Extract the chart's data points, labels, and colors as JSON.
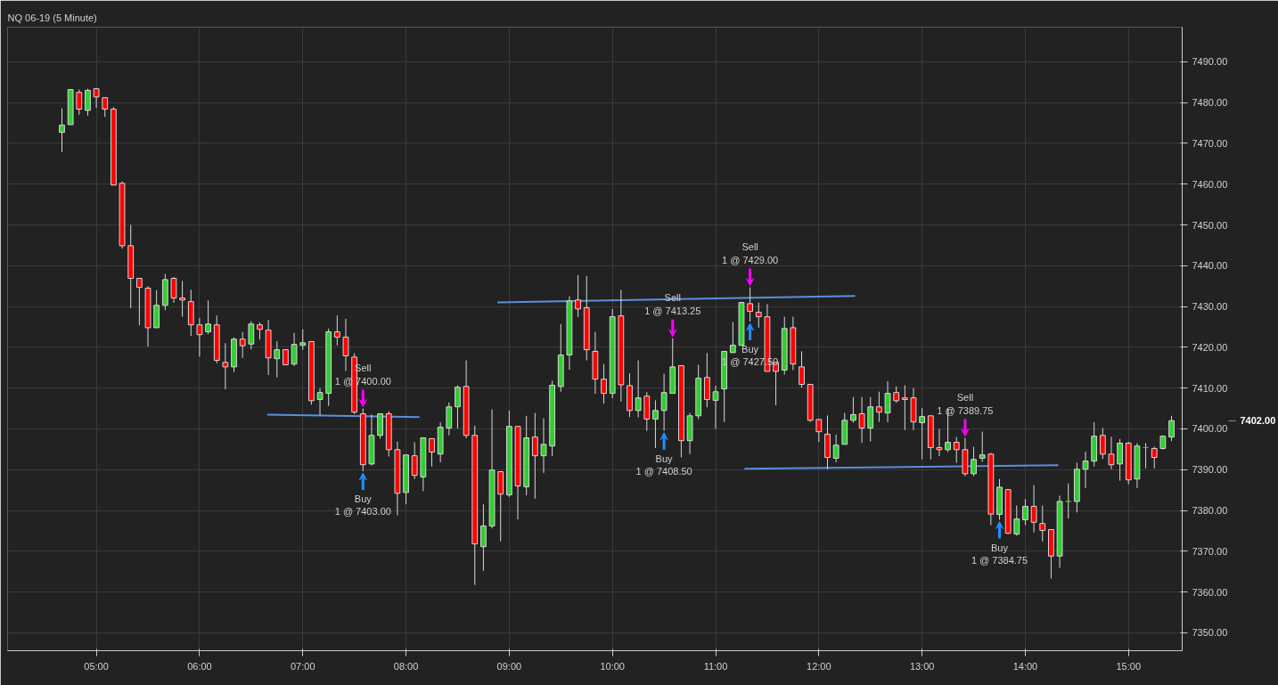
{
  "chart_data": {
    "type": "candlestick",
    "title": "NQ 06-19 (5 Minute)",
    "x": [
      4.6667,
      4.75,
      4.8333,
      4.9167,
      5,
      5.0833,
      5.1667,
      5.25,
      5.3333,
      5.4167,
      5.5,
      5.5833,
      5.6667,
      5.75,
      5.8333,
      5.9167,
      6,
      6.0833,
      6.1667,
      6.25,
      6.3333,
      6.4167,
      6.5,
      6.5833,
      6.6667,
      6.75,
      6.8333,
      6.9167,
      7,
      7.0833,
      7.1667,
      7.25,
      7.3333,
      7.4167,
      7.5,
      7.5833,
      7.6667,
      7.75,
      7.8333,
      7.9167,
      8,
      8.0833,
      8.1667,
      8.25,
      8.3333,
      8.4167,
      8.5,
      8.5833,
      8.6667,
      8.75,
      8.8333,
      8.9167,
      9,
      9.0833,
      9.1667,
      9.25,
      9.3333,
      9.4167,
      9.5,
      9.5833,
      9.6667,
      9.75,
      9.8333,
      9.9167,
      10,
      10.0833,
      10.1667,
      10.25,
      10.3333,
      10.4167,
      10.5,
      10.5833,
      10.6667,
      10.75,
      10.8333,
      10.9167,
      11,
      11.0833,
      11.1667,
      11.25,
      11.3333,
      11.4167,
      11.5,
      11.5833,
      11.6667,
      11.75,
      11.8333,
      11.9167,
      12,
      12.0833,
      12.1667,
      12.25,
      12.3333,
      12.4167,
      12.5,
      12.5833,
      12.6667,
      12.75,
      12.8333,
      12.9167,
      13,
      13.0833,
      13.1667,
      13.25,
      13.3333,
      13.4167,
      13.5,
      13.5833,
      13.6667,
      13.75,
      13.8333,
      13.9167,
      14,
      14.0833,
      14.1667,
      14.25,
      14.3333,
      14.4167,
      14.5,
      14.5833,
      14.6667,
      14.75,
      14.8333,
      14.9167,
      15,
      15.0833,
      15.1667,
      15.25,
      15.3333,
      15.4167
    ],
    "ohlc": [
      [
        7472.7,
        7478.6,
        7467.9,
        7474.5
      ],
      [
        7474.6,
        7483.2,
        7474.6,
        7483.2
      ],
      [
        7482.5,
        7483.2,
        7477.0,
        7478.4
      ],
      [
        7478.1,
        7483.4,
        7476.8,
        7483.0
      ],
      [
        7483.4,
        7483.6,
        7478.7,
        7481.4
      ],
      [
        7481.2,
        7481.2,
        7476.5,
        7478.4
      ],
      [
        7478.4,
        7478.9,
        7459.8,
        7459.8
      ],
      [
        7460.2,
        7460.7,
        7444.2,
        7444.9
      ],
      [
        7444.9,
        7450.0,
        7429.6,
        7436.9
      ],
      [
        7436.9,
        7436.9,
        7425.4,
        7434.7
      ],
      [
        7434.5,
        7435.0,
        7420.2,
        7424.8
      ],
      [
        7424.8,
        7434.0,
        7424.8,
        7430.3
      ],
      [
        7430.3,
        7438.0,
        7429.1,
        7436.6
      ],
      [
        7436.9,
        7437.2,
        7430.9,
        7432.1
      ],
      [
        7432.1,
        7436.3,
        7427.5,
        7431.6
      ],
      [
        7431.2,
        7434.1,
        7422.8,
        7425.5
      ],
      [
        7425.5,
        7427.2,
        7417.7,
        7423.1
      ],
      [
        7423.8,
        7431.5,
        7423.2,
        7425.7
      ],
      [
        7425.5,
        7427.8,
        7416.1,
        7416.8
      ],
      [
        7416.3,
        7421.0,
        7409.7,
        7415.2
      ],
      [
        7415.2,
        7422.4,
        7413.9,
        7422.0
      ],
      [
        7422.0,
        7423.8,
        7417.4,
        7420.4
      ],
      [
        7420.8,
        7426.4,
        7419.5,
        7425.7
      ],
      [
        7425.5,
        7426.1,
        7421.9,
        7424.4
      ],
      [
        7424.2,
        7426.7,
        7413.2,
        7417.4
      ],
      [
        7417.2,
        7421.5,
        7412.6,
        7419.4
      ],
      [
        7419.4,
        7419.4,
        7415.7,
        7415.7
      ],
      [
        7415.9,
        7423.5,
        7415.4,
        7420.7
      ],
      [
        7420.5,
        7424.4,
        7419.4,
        7421.1
      ],
      [
        7421.4,
        7421.4,
        7405.9,
        7406.9
      ],
      [
        7407.2,
        7410.0,
        7403.3,
        7408.9
      ],
      [
        7408.7,
        7424.6,
        7405.6,
        7423.8
      ],
      [
        7423.8,
        7427.8,
        7420.5,
        7422.5
      ],
      [
        7422.5,
        7427.0,
        7414.2,
        7417.9
      ],
      [
        7417.6,
        7418.5,
        7403.6,
        7404.1
      ],
      [
        7403.7,
        7405.0,
        7389.6,
        7391.2
      ],
      [
        7391.4,
        7403.5,
        7391.0,
        7398.4
      ],
      [
        7398.4,
        7403.7,
        7397.6,
        7403.7
      ],
      [
        7403.7,
        7404.3,
        7393.2,
        7394.9
      ],
      [
        7394.9,
        7396.9,
        7378.8,
        7384.2
      ],
      [
        7384.4,
        7393.6,
        7381.5,
        7393.6
      ],
      [
        7393.4,
        7396.7,
        7387.7,
        7388.6
      ],
      [
        7388.2,
        7397.8,
        7384.7,
        7397.8
      ],
      [
        7397.6,
        7397.6,
        7390.8,
        7394.3
      ],
      [
        7393.8,
        7401.6,
        7391.8,
        7400.4
      ],
      [
        7400.2,
        7406.5,
        7398.4,
        7405.4
      ],
      [
        7405.4,
        7410.7,
        7400.1,
        7410.2
      ],
      [
        7410.4,
        7416.8,
        7397.7,
        7398.4
      ],
      [
        7398.4,
        7400.8,
        7361.7,
        7371.8
      ],
      [
        7371.1,
        7381.5,
        7365.2,
        7376.2
      ],
      [
        7376.2,
        7404.8,
        7375.6,
        7389.9
      ],
      [
        7389.5,
        7389.5,
        7372.4,
        7384.0
      ],
      [
        7383.8,
        7404.5,
        7383.3,
        7400.6
      ],
      [
        7400.6,
        7400.6,
        7377.8,
        7386.0
      ],
      [
        7385.8,
        7403.2,
        7383.7,
        7397.8
      ],
      [
        7398.0,
        7403.9,
        7382.9,
        7393.4
      ],
      [
        7393.4,
        7402.6,
        7389.2,
        7396.2
      ],
      [
        7395.8,
        7411.8,
        7393.3,
        7410.7
      ],
      [
        7410.4,
        7425.7,
        7409.1,
        7418.1
      ],
      [
        7418.1,
        7432.5,
        7414.5,
        7431.4
      ],
      [
        7431.6,
        7437.7,
        7427.4,
        7429.4
      ],
      [
        7429.7,
        7437.5,
        7416.8,
        7419.4
      ],
      [
        7419.0,
        7423.8,
        7408.6,
        7412.2
      ],
      [
        7412.2,
        7415.9,
        7406.2,
        7408.7
      ],
      [
        7408.7,
        7429.4,
        7407.5,
        7427.5
      ],
      [
        7427.7,
        7434.1,
        7406.7,
        7410.8
      ],
      [
        7410.6,
        7413.6,
        7402.9,
        7404.5
      ],
      [
        7404.5,
        7416.8,
        7402.8,
        7407.6
      ],
      [
        7408.0,
        7409.0,
        7399.5,
        7402.4
      ],
      [
        7402.4,
        7407.0,
        7395.3,
        7404.5
      ],
      [
        7404.5,
        7413.5,
        7399.5,
        7408.9
      ],
      [
        7408.7,
        7422.2,
        7408.7,
        7415.2
      ],
      [
        7415.5,
        7415.5,
        7393.0,
        7397.1
      ],
      [
        7397.1,
        7403.9,
        7393.8,
        7403.2
      ],
      [
        7403.2,
        7415.7,
        7402.4,
        7412.4
      ],
      [
        7412.6,
        7418.6,
        7405.3,
        7407.2
      ],
      [
        7407.0,
        7410.6,
        7400.0,
        7409.1
      ],
      [
        7409.8,
        7419.0,
        7401.7,
        7419.0
      ],
      [
        7418.7,
        7426.2,
        7418.7,
        7420.5
      ],
      [
        7420.5,
        7431.0,
        7420.5,
        7431.0
      ],
      [
        7430.7,
        7434.7,
        7426.3,
        7428.8
      ],
      [
        7428.6,
        7431.0,
        7424.8,
        7427.5
      ],
      [
        7427.5,
        7430.6,
        7414.1,
        7414.1
      ],
      [
        7416.3,
        7416.3,
        7405.8,
        7414.1
      ],
      [
        7414.4,
        7427.5,
        7413.3,
        7424.6
      ],
      [
        7424.8,
        7427.5,
        7414.4,
        7415.9
      ],
      [
        7415.2,
        7419.0,
        7410.1,
        7410.9
      ],
      [
        7410.9,
        7410.9,
        7401.7,
        7402.1
      ],
      [
        7402.3,
        7402.4,
        7396.8,
        7399.3
      ],
      [
        7398.7,
        7403.3,
        7390.1,
        7393.0
      ],
      [
        7392.8,
        7398.6,
        7391.8,
        7396.0
      ],
      [
        7396.2,
        7403.9,
        7396.2,
        7402.1
      ],
      [
        7402.1,
        7407.8,
        7401.5,
        7403.5
      ],
      [
        7403.7,
        7407.8,
        7396.6,
        7400.2
      ],
      [
        7400.2,
        7407.8,
        7396.9,
        7405.4
      ],
      [
        7405.4,
        7409.1,
        7401.7,
        7404.1
      ],
      [
        7403.9,
        7411.7,
        7401.6,
        7408.7
      ],
      [
        7408.9,
        7410.4,
        7406.4,
        7406.9
      ],
      [
        7407.6,
        7410.7,
        7399.7,
        7407.2
      ],
      [
        7407.6,
        7410.0,
        7399.7,
        7401.7
      ],
      [
        7401.5,
        7405.1,
        7392.5,
        7403.0
      ],
      [
        7403.2,
        7403.2,
        7392.5,
        7395.4
      ],
      [
        7395.4,
        7400.0,
        7393.3,
        7394.9
      ],
      [
        7394.9,
        7405.0,
        7394.3,
        7396.7
      ],
      [
        7396.7,
        7398.0,
        7391.7,
        7394.9
      ],
      [
        7394.9,
        7397.8,
        7388.4,
        7389.0
      ],
      [
        7389.0,
        7395.6,
        7388.4,
        7392.5
      ],
      [
        7392.8,
        7399.3,
        7391.9,
        7393.6
      ],
      [
        7393.8,
        7394.1,
        7376.4,
        7379.1
      ],
      [
        7379.0,
        7387.7,
        7377.7,
        7385.7
      ],
      [
        7385.1,
        7385.1,
        7374.2,
        7374.4
      ],
      [
        7374.2,
        7381.2,
        7373.8,
        7377.9
      ],
      [
        7377.7,
        7382.8,
        7376.4,
        7381.0
      ],
      [
        7381.0,
        7386.2,
        7374.6,
        7377.1
      ],
      [
        7376.8,
        7381.2,
        7372.4,
        7375.1
      ],
      [
        7375.3,
        7375.3,
        7363.3,
        7368.8
      ],
      [
        7368.8,
        7383.6,
        7365.9,
        7382.2
      ],
      [
        7382.2,
        7386.6,
        7378.0,
        7382.2
      ],
      [
        7382.2,
        7391.7,
        7379.5,
        7390.1
      ],
      [
        7390.1,
        7394.4,
        7385.5,
        7392.1
      ],
      [
        7392.1,
        7401.6,
        7390.8,
        7398.2
      ],
      [
        7398.4,
        7400.2,
        7392.6,
        7393.8
      ],
      [
        7393.8,
        7398.1,
        7390.1,
        7391.2
      ],
      [
        7391.4,
        7397.5,
        7387.3,
        7396.5
      ],
      [
        7396.5,
        7396.8,
        7386.4,
        7387.5
      ],
      [
        7387.7,
        7396.5,
        7385.5,
        7395.8
      ],
      [
        7395.4,
        7396.5,
        7390.3,
        7395.4
      ],
      [
        7395.2,
        7395.6,
        7390.3,
        7393.0
      ],
      [
        7395.2,
        7398.4,
        7394.9,
        7398.2
      ],
      [
        7398.0,
        7403.2,
        7397.0,
        7402.0
      ]
    ],
    "colors": [
      "#32cd32",
      "#32cd32",
      "#ff0000",
      "#32cd32",
      "#ff0000",
      "#ff0000",
      "#ff0000",
      "#ff0000",
      "#ff0000",
      "#ff0000",
      "#ff0000",
      "#32cd32",
      "#32cd32",
      "#ff0000",
      "#ff0000",
      "#ff0000",
      "#ff0000",
      "#32cd32",
      "#ff0000",
      "#ff0000",
      "#32cd32",
      "#ff0000",
      "#32cd32",
      "#ff0000",
      "#ff0000",
      "#32cd32",
      "#ff0000",
      "#32cd32",
      "#32cd32",
      "#ff0000",
      "#32cd32",
      "#32cd32",
      "#ff0000",
      "#ff0000",
      "#ff0000",
      "#ff0000",
      "#32cd32",
      "#32cd32",
      "#ff0000",
      "#ff0000",
      "#32cd32",
      "#ff0000",
      "#32cd32",
      "#ff0000",
      "#32cd32",
      "#32cd32",
      "#32cd32",
      "#ff0000",
      "#ff0000",
      "#32cd32",
      "#32cd32",
      "#ff0000",
      "#32cd32",
      "#ff0000",
      "#32cd32",
      "#ff0000",
      "#32cd32",
      "#32cd32",
      "#32cd32",
      "#32cd32",
      "#ff0000",
      "#ff0000",
      "#ff0000",
      "#ff0000",
      "#32cd32",
      "#ff0000",
      "#ff0000",
      "#32cd32",
      "#ff0000",
      "#32cd32",
      "#32cd32",
      "#32cd32",
      "#ff0000",
      "#32cd32",
      "#32cd32",
      "#ff0000",
      "#32cd32",
      "#32cd32",
      "#32cd32",
      "#32cd32",
      "#ff0000",
      "#ff0000",
      "#ff0000",
      "#ff0000",
      "#32cd32",
      "#ff0000",
      "#ff0000",
      "#ff0000",
      "#ff0000",
      "#ff0000",
      "#32cd32",
      "#32cd32",
      "#32cd32",
      "#ff0000",
      "#32cd32",
      "#ff0000",
      "#32cd32",
      "#ff0000",
      "#ff0000",
      "#ff0000",
      "#32cd32",
      "#ff0000",
      "#ff0000",
      "#32cd32",
      "#ff0000",
      "#ff0000",
      "#32cd32",
      "#32cd32",
      "#ff0000",
      "#32cd32",
      "#ff0000",
      "#32cd32",
      "#32cd32",
      "#ff0000",
      "#ff0000",
      "#ff0000",
      "#32cd32",
      "#32cd32",
      "#32cd32",
      "#32cd32",
      "#32cd32",
      "#ff0000",
      "#ff0000",
      "#32cd32",
      "#ff0000",
      "#32cd32",
      "#32cd32",
      "#ff0000",
      "#32cd32",
      "#32cd32"
    ],
    "series": [
      {
        "type": "line",
        "x": [
          6.656,
          8.131
        ],
        "values": [
          7403.5,
          7402.9
        ],
        "color": "#5b8fe0"
      },
      {
        "type": "line",
        "x": [
          8.885,
          12.352
        ],
        "values": [
          7431.0,
          7432.6
        ],
        "color": "#5b8fe0"
      },
      {
        "type": "line",
        "x": [
          11.279,
          14.32
        ],
        "values": [
          7390.2,
          7391.1
        ],
        "color": "#5b8fe0"
      }
    ],
    "xlim": [
      4.14,
      15.52
    ],
    "ylim": [
      7345.6,
      7498.5
    ],
    "xticks": [
      {
        "value": 5,
        "label": "05:00"
      },
      {
        "value": 6,
        "label": "06:00"
      },
      {
        "value": 7,
        "label": "07:00"
      },
      {
        "value": 8,
        "label": "08:00"
      },
      {
        "value": 9,
        "label": "09:00"
      },
      {
        "value": 10,
        "label": "10:00"
      },
      {
        "value": 11,
        "label": "11:00"
      },
      {
        "value": 12,
        "label": "12:00"
      },
      {
        "value": 13,
        "label": "13:00"
      },
      {
        "value": 14,
        "label": "14:00"
      },
      {
        "value": 15,
        "label": "15:00"
      }
    ],
    "yticks": [
      {
        "value": 7350,
        "label": "7350.00"
      },
      {
        "value": 7360,
        "label": "7360.00"
      },
      {
        "value": 7370,
        "label": "7370.00"
      },
      {
        "value": 7380,
        "label": "7380.00"
      },
      {
        "value": 7390,
        "label": "7390.00"
      },
      {
        "value": 7400,
        "label": "7400.00"
      },
      {
        "value": 7410,
        "label": "7410.00"
      },
      {
        "value": 7420,
        "label": "7420.00"
      },
      {
        "value": 7430,
        "label": "7430.00"
      },
      {
        "value": 7440,
        "label": "7440.00"
      },
      {
        "value": 7450,
        "label": "7450.00"
      },
      {
        "value": 7460,
        "label": "7460.00"
      },
      {
        "value": 7470,
        "label": "7470.00"
      },
      {
        "value": 7480,
        "label": "7480.00"
      },
      {
        "value": 7490,
        "label": "7490.00"
      }
    ],
    "grid": true,
    "annotations": [
      {
        "text": "Sell\n1 @ 7400.00",
        "x": 7.5833,
        "y": 7405.0
      },
      {
        "text": "Buy\n1 @ 7403.00",
        "x": 7.5833,
        "y": 7389.6
      },
      {
        "text": "Sell\n1 @ 7413.25",
        "x": 10.5833,
        "y": 7422.2
      },
      {
        "text": "Buy\n1 @ 7408.50",
        "x": 10.5,
        "y": 7399.5
      },
      {
        "text": "Sell\n1 @ 7429.00",
        "x": 11.3333,
        "y": 7434.7
      },
      {
        "text": "Buy\n1 @ 7427.50",
        "x": 11.3333,
        "y": 7426.3
      },
      {
        "text": "Sell\n1 @ 7389.75",
        "x": 13.4167,
        "y": 7397.8
      },
      {
        "text": "Buy\n1 @ 7384.75",
        "x": 13.75,
        "y": 7377.7
      },
      "7402.00"
    ]
  }
}
